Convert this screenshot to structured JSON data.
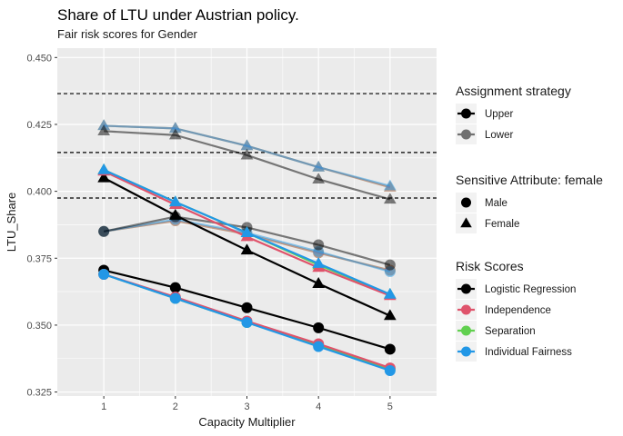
{
  "chart_data": {
    "type": "line",
    "title": "Share of LTU under Austrian policy.",
    "subtitle": "Fair risk scores for Gender",
    "xlabel": "Capacity Multiplier",
    "ylabel": "LTU_Share",
    "x": [
      1,
      2,
      3,
      4,
      5
    ],
    "x_ticks": [
      "1",
      "2",
      "3",
      "4",
      "5"
    ],
    "y_ticks": [
      "0.325",
      "0.350",
      "0.375",
      "0.400",
      "0.425",
      "0.450"
    ],
    "xlim": [
      0.35,
      5.65
    ],
    "ylim": [
      0.3235,
      0.4535
    ],
    "grid": true,
    "hlines": [
      0.4365,
      0.4145,
      0.3975
    ],
    "legend_position": "right",
    "legends": [
      {
        "title": "Assignment strategy",
        "entries": [
          {
            "label": "Upper",
            "color": "#000000"
          },
          {
            "label": "Lower",
            "color": "#707070"
          }
        ]
      },
      {
        "title": "Sensitive Attribute: female",
        "entries": [
          {
            "label": "Male",
            "shape": "circle"
          },
          {
            "label": "Female",
            "shape": "triangle"
          }
        ]
      },
      {
        "title": "Risk Scores",
        "entries": [
          {
            "label": "Logistic Regression",
            "color": "#000000"
          },
          {
            "label": "Independence",
            "color": "#DF536B"
          },
          {
            "label": "Separation",
            "color": "#61D04F"
          },
          {
            "label": "Individual Fairness",
            "color": "#2297E6"
          }
        ]
      }
    ],
    "series": [
      {
        "risk": "Separation",
        "strategy": "Lower",
        "attribute": "Female",
        "color": "#61D04F",
        "alpha": 0.5,
        "values": [
          0.4245,
          0.4235,
          0.417,
          0.409,
          0.4015
        ]
      },
      {
        "risk": "Independence",
        "strategy": "Lower",
        "attribute": "Female",
        "color": "#DF536B",
        "alpha": 0.5,
        "values": [
          0.4245,
          0.4235,
          0.417,
          0.409,
          0.4015
        ]
      },
      {
        "risk": "Individual Fairness",
        "strategy": "Lower",
        "attribute": "Female",
        "color": "#2297E6",
        "alpha": 0.5,
        "values": [
          0.4245,
          0.4235,
          0.417,
          0.409,
          0.402
        ]
      },
      {
        "risk": "Logistic Regression",
        "strategy": "Lower",
        "attribute": "Female",
        "color": "#000000",
        "alpha": 0.5,
        "values": [
          0.4225,
          0.421,
          0.4135,
          0.4045,
          0.397
        ]
      },
      {
        "risk": "Separation",
        "strategy": "Lower",
        "attribute": "Male",
        "color": "#61D04F",
        "alpha": 0.5,
        "values": [
          0.385,
          0.389,
          0.384,
          0.377,
          0.3705
        ]
      },
      {
        "risk": "Independence",
        "strategy": "Lower",
        "attribute": "Male",
        "color": "#DF536B",
        "alpha": 0.5,
        "values": [
          0.385,
          0.389,
          0.384,
          0.377,
          0.3705
        ]
      },
      {
        "risk": "Individual Fairness",
        "strategy": "Lower",
        "attribute": "Male",
        "color": "#2297E6",
        "alpha": 0.5,
        "values": [
          0.385,
          0.3895,
          0.3845,
          0.3775,
          0.37
        ]
      },
      {
        "risk": "Logistic Regression",
        "strategy": "Lower",
        "attribute": "Male",
        "color": "#000000",
        "alpha": 0.5,
        "values": [
          0.385,
          0.3905,
          0.3865,
          0.38,
          0.3725
        ]
      },
      {
        "risk": "Logistic Regression",
        "strategy": "Upper",
        "attribute": "Female",
        "color": "#000000",
        "alpha": 1,
        "values": [
          0.405,
          0.391,
          0.378,
          0.3655,
          0.3535
        ]
      },
      {
        "risk": "Separation",
        "strategy": "Upper",
        "attribute": "Female",
        "color": "#61D04F",
        "alpha": 1,
        "values": [
          0.408,
          0.396,
          0.3845,
          0.3725,
          0.3615
        ]
      },
      {
        "risk": "Independence",
        "strategy": "Upper",
        "attribute": "Female",
        "color": "#DF536B",
        "alpha": 1,
        "values": [
          0.4075,
          0.395,
          0.383,
          0.3715,
          0.361
        ]
      },
      {
        "risk": "Individual Fairness",
        "strategy": "Upper",
        "attribute": "Female",
        "color": "#2297E6",
        "alpha": 1,
        "values": [
          0.408,
          0.396,
          0.3845,
          0.373,
          0.3615
        ]
      },
      {
        "risk": "Logistic Regression",
        "strategy": "Upper",
        "attribute": "Male",
        "color": "#000000",
        "alpha": 1,
        "values": [
          0.3705,
          0.364,
          0.3565,
          0.349,
          0.341
        ]
      },
      {
        "risk": "Separation",
        "strategy": "Upper",
        "attribute": "Male",
        "color": "#61D04F",
        "alpha": 1,
        "values": [
          0.369,
          0.36,
          0.351,
          0.3425,
          0.3335
        ]
      },
      {
        "risk": "Independence",
        "strategy": "Upper",
        "attribute": "Male",
        "color": "#DF536B",
        "alpha": 1,
        "values": [
          0.369,
          0.3605,
          0.3515,
          0.343,
          0.334
        ]
      },
      {
        "risk": "Individual Fairness",
        "strategy": "Upper",
        "attribute": "Male",
        "color": "#2297E6",
        "alpha": 1,
        "values": [
          0.369,
          0.36,
          0.351,
          0.342,
          0.333
        ]
      }
    ]
  }
}
